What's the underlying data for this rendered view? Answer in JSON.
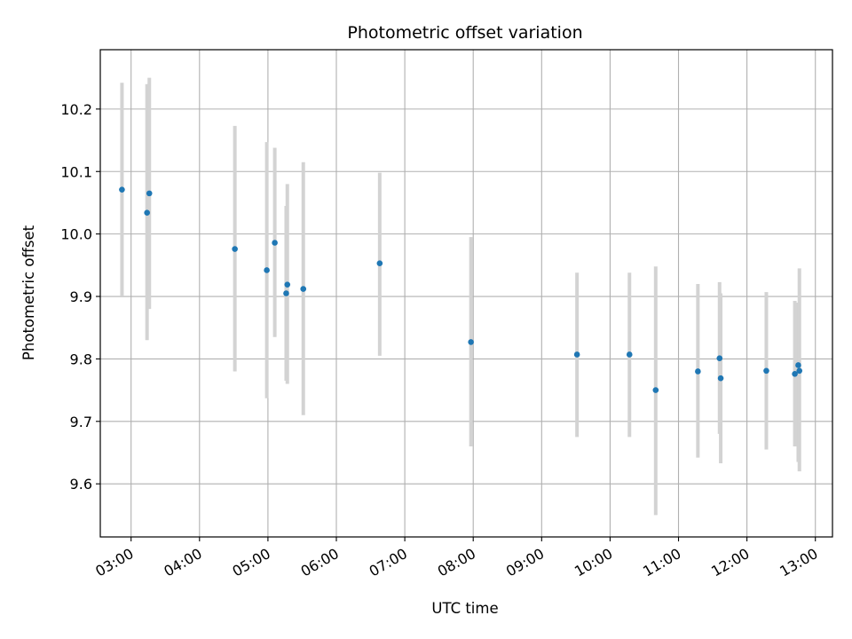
{
  "chart_data": {
    "type": "scatter",
    "title": "Photometric offset variation",
    "xlabel": "UTC time",
    "ylabel": "Photometric offset",
    "grid": true,
    "xlim": [
      "02:33",
      "13:15"
    ],
    "ylim": [
      9.515,
      10.295
    ],
    "x_ticks": [
      "03:00",
      "04:00",
      "05:00",
      "06:00",
      "07:00",
      "08:00",
      "09:00",
      "10:00",
      "11:00",
      "12:00",
      "13:00"
    ],
    "y_ticks": [
      "9.6",
      "9.7",
      "9.8",
      "9.9",
      "10.0",
      "10.1",
      "10.2"
    ],
    "colors": {
      "marker": "#1f77b4",
      "errorbar": "#d3d3d3",
      "grid": "#b0b0b0"
    },
    "points": [
      {
        "x": "02:52",
        "y": 10.071,
        "ylow": 9.9,
        "yhigh": 10.242
      },
      {
        "x": "03:14",
        "y": 10.034,
        "ylow": 9.83,
        "yhigh": 10.24
      },
      {
        "x": "03:16",
        "y": 10.065,
        "ylow": 9.88,
        "yhigh": 10.25
      },
      {
        "x": "04:31",
        "y": 9.976,
        "ylow": 9.78,
        "yhigh": 10.173
      },
      {
        "x": "04:59",
        "y": 9.942,
        "ylow": 9.737,
        "yhigh": 10.147
      },
      {
        "x": "05:06",
        "y": 9.986,
        "ylow": 9.835,
        "yhigh": 10.138
      },
      {
        "x": "05:16",
        "y": 9.905,
        "ylow": 9.765,
        "yhigh": 10.045
      },
      {
        "x": "05:17",
        "y": 9.919,
        "ylow": 9.76,
        "yhigh": 10.08
      },
      {
        "x": "05:31",
        "y": 9.912,
        "ylow": 9.71,
        "yhigh": 10.115
      },
      {
        "x": "06:38",
        "y": 9.953,
        "ylow": 9.805,
        "yhigh": 10.098
      },
      {
        "x": "07:58",
        "y": 9.827,
        "ylow": 9.66,
        "yhigh": 9.995
      },
      {
        "x": "09:31",
        "y": 9.807,
        "ylow": 9.675,
        "yhigh": 9.938
      },
      {
        "x": "10:17",
        "y": 9.807,
        "ylow": 9.675,
        "yhigh": 9.938
      },
      {
        "x": "10:40",
        "y": 9.75,
        "ylow": 9.55,
        "yhigh": 9.948
      },
      {
        "x": "11:17",
        "y": 9.78,
        "ylow": 9.642,
        "yhigh": 9.92
      },
      {
        "x": "11:36",
        "y": 9.801,
        "ylow": 9.68,
        "yhigh": 9.923
      },
      {
        "x": "11:37",
        "y": 9.769,
        "ylow": 9.633,
        "yhigh": 9.905
      },
      {
        "x": "12:17",
        "y": 9.781,
        "ylow": 9.655,
        "yhigh": 9.907
      },
      {
        "x": "12:42",
        "y": 9.776,
        "ylow": 9.66,
        "yhigh": 9.893
      },
      {
        "x": "12:45",
        "y": 9.79,
        "ylow": 9.635,
        "yhigh": 9.89
      },
      {
        "x": "12:46",
        "y": 9.781,
        "ylow": 9.62,
        "yhigh": 9.945
      }
    ]
  }
}
